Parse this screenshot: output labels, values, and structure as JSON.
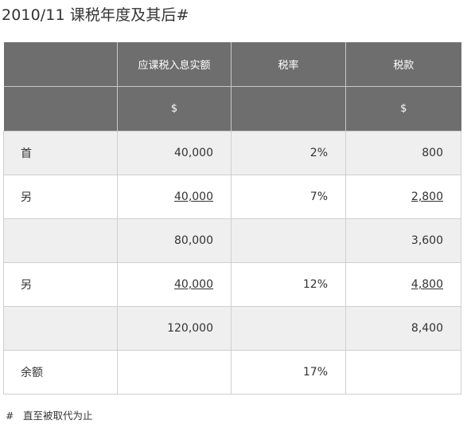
{
  "title": "2010/11 课税年度及其后#",
  "table": {
    "headers": [
      "",
      "应课税入息实额",
      "税率",
      "税款"
    ],
    "units": [
      "",
      "$",
      "",
      "$"
    ],
    "rows": [
      {
        "label": "首",
        "income": "40,000",
        "rate": "2%",
        "tax": "800"
      },
      {
        "label": "另",
        "income": "40,000",
        "rate": "7%",
        "tax": "2,800"
      },
      {
        "label": "",
        "income": "80,000",
        "rate": "",
        "tax": "3,600"
      },
      {
        "label": "另",
        "income": "40,000",
        "rate": "12%",
        "tax": "4,800"
      },
      {
        "label": "",
        "income": "120,000",
        "rate": "",
        "tax": "8,400"
      },
      {
        "label": "余额",
        "income": "",
        "rate": "17%",
        "tax": ""
      }
    ]
  },
  "footnote": {
    "mark": "#",
    "text": "直至被取代为止"
  }
}
